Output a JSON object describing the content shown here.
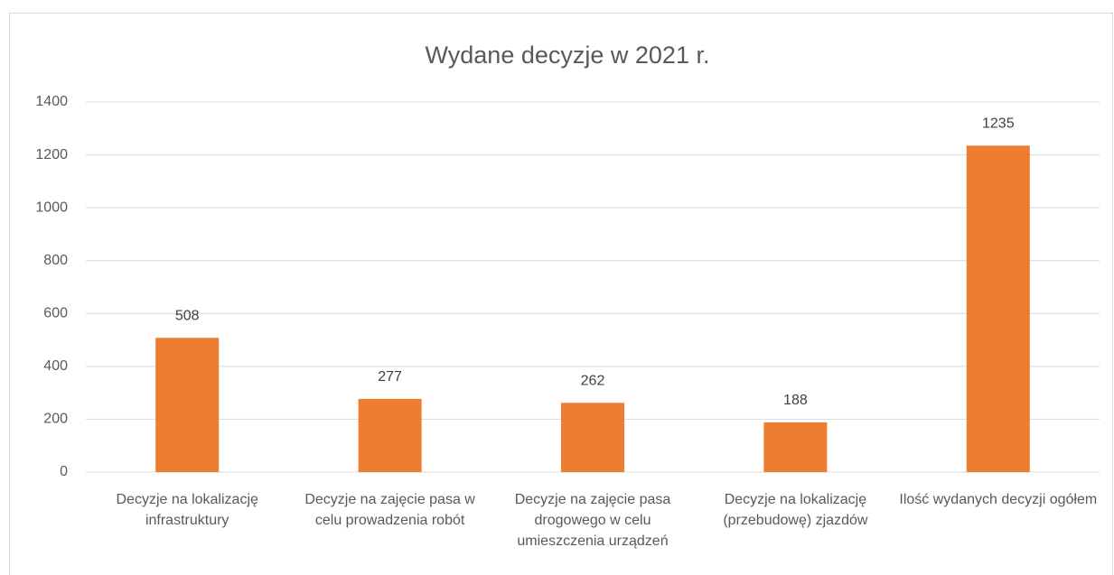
{
  "chart_data": {
    "type": "bar",
    "title": "Wydane decyzje w 2021 r.",
    "categories": [
      "Decyzje na lokalizację infrastruktury",
      "Decyzje na zajęcie pasa w celu prowadzenia robót",
      "Decyzje na zajęcie pasa drogowego w celu umieszczenia urządzeń",
      "Decyzje na lokalizację (przebudowę) zjazdów",
      "Ilość wydanych decyzji ogółem"
    ],
    "values": [
      508,
      277,
      262,
      188,
      1235
    ],
    "color": "#ed7d31",
    "ylim": [
      0,
      1400
    ],
    "yticks": [
      0,
      200,
      400,
      600,
      800,
      1000,
      1200,
      1400
    ],
    "grid": true
  }
}
